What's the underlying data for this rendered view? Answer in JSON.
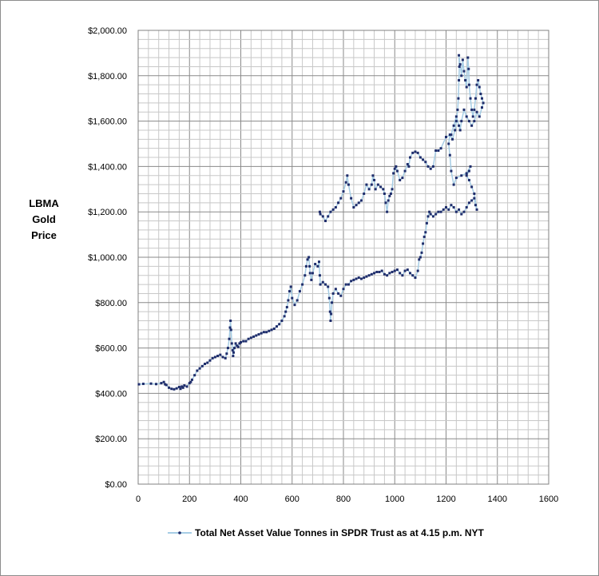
{
  "chart_data": {
    "type": "scatter",
    "title": "",
    "ylabel": "LBMA Gold Price",
    "ylabel_lines": [
      "LBMA",
      "Gold",
      "Price"
    ],
    "xlim": [
      0,
      1600
    ],
    "ylim": [
      0,
      2000
    ],
    "x_ticks": [
      0,
      200,
      400,
      600,
      800,
      1000,
      1200,
      1400,
      1600
    ],
    "x_tick_labels": [
      "0",
      "200",
      "400",
      "600",
      "800",
      "1000",
      "1200",
      "1400",
      "1600"
    ],
    "y_ticks": [
      0,
      200,
      400,
      600,
      800,
      1000,
      1200,
      1400,
      1600,
      1800,
      2000
    ],
    "y_tick_labels": [
      "$0.00",
      "$200.00",
      "$400.00",
      "$600.00",
      "$800.00",
      "$1,000.00",
      "$1,200.00",
      "$1,400.00",
      "$1,600.00",
      "$1,800.00",
      "$2,000.00"
    ],
    "grid": true,
    "legend_position": "bottom",
    "line_color": "#a6cde5",
    "marker_color": "#1f2d6b",
    "series": [
      {
        "name": "Total Net Asset Value Tonnes in SPDR Trust as at 4.15 p.m. NYT",
        "points": [
          [
            3,
            440
          ],
          [
            20,
            442
          ],
          [
            50,
            443
          ],
          [
            70,
            441
          ],
          [
            90,
            445
          ],
          [
            100,
            450
          ],
          [
            105,
            440
          ],
          [
            110,
            437
          ],
          [
            120,
            425
          ],
          [
            130,
            420
          ],
          [
            140,
            418
          ],
          [
            150,
            422
          ],
          [
            160,
            428
          ],
          [
            165,
            420
          ],
          [
            170,
            430
          ],
          [
            175,
            425
          ],
          [
            180,
            435
          ],
          [
            190,
            430
          ],
          [
            200,
            445
          ],
          [
            205,
            450
          ],
          [
            210,
            460
          ],
          [
            220,
            480
          ],
          [
            230,
            500
          ],
          [
            240,
            510
          ],
          [
            250,
            520
          ],
          [
            260,
            530
          ],
          [
            270,
            535
          ],
          [
            280,
            545
          ],
          [
            290,
            555
          ],
          [
            300,
            560
          ],
          [
            310,
            565
          ],
          [
            320,
            570
          ],
          [
            330,
            560
          ],
          [
            340,
            555
          ],
          [
            345,
            575
          ],
          [
            350,
            600
          ],
          [
            355,
            640
          ],
          [
            358,
            690
          ],
          [
            360,
            720
          ],
          [
            362,
            680
          ],
          [
            365,
            620
          ],
          [
            368,
            590
          ],
          [
            370,
            565
          ],
          [
            372,
            580
          ],
          [
            375,
            600
          ],
          [
            380,
            620
          ],
          [
            385,
            610
          ],
          [
            390,
            605
          ],
          [
            395,
            620
          ],
          [
            400,
            625
          ],
          [
            410,
            630
          ],
          [
            420,
            630
          ],
          [
            430,
            640
          ],
          [
            440,
            645
          ],
          [
            450,
            650
          ],
          [
            460,
            655
          ],
          [
            470,
            660
          ],
          [
            480,
            665
          ],
          [
            490,
            670
          ],
          [
            500,
            670
          ],
          [
            510,
            675
          ],
          [
            520,
            680
          ],
          [
            530,
            685
          ],
          [
            540,
            695
          ],
          [
            550,
            705
          ],
          [
            560,
            720
          ],
          [
            570,
            740
          ],
          [
            575,
            760
          ],
          [
            580,
            780
          ],
          [
            585,
            810
          ],
          [
            590,
            850
          ],
          [
            595,
            870
          ],
          [
            600,
            820
          ],
          [
            610,
            790
          ],
          [
            620,
            810
          ],
          [
            630,
            850
          ],
          [
            640,
            880
          ],
          [
            650,
            920
          ],
          [
            655,
            960
          ],
          [
            660,
            990
          ],
          [
            665,
            1000
          ],
          [
            668,
            960
          ],
          [
            670,
            930
          ],
          [
            675,
            900
          ],
          [
            680,
            930
          ],
          [
            690,
            970
          ],
          [
            700,
            960
          ],
          [
            705,
            980
          ],
          [
            708,
            920
          ],
          [
            710,
            880
          ],
          [
            720,
            890
          ],
          [
            730,
            880
          ],
          [
            740,
            870
          ],
          [
            745,
            820
          ],
          [
            748,
            760
          ],
          [
            750,
            720
          ],
          [
            752,
            750
          ],
          [
            755,
            800
          ],
          [
            760,
            840
          ],
          [
            770,
            860
          ],
          [
            780,
            840
          ],
          [
            790,
            830
          ],
          [
            800,
            860
          ],
          [
            810,
            880
          ],
          [
            820,
            880
          ],
          [
            830,
            895
          ],
          [
            840,
            900
          ],
          [
            850,
            905
          ],
          [
            860,
            910
          ],
          [
            870,
            905
          ],
          [
            880,
            910
          ],
          [
            890,
            915
          ],
          [
            900,
            920
          ],
          [
            910,
            925
          ],
          [
            920,
            930
          ],
          [
            930,
            935
          ],
          [
            940,
            935
          ],
          [
            950,
            940
          ],
          [
            960,
            925
          ],
          [
            970,
            920
          ],
          [
            980,
            930
          ],
          [
            990,
            935
          ],
          [
            1000,
            940
          ],
          [
            1010,
            945
          ],
          [
            1020,
            930
          ],
          [
            1030,
            920
          ],
          [
            1040,
            940
          ],
          [
            1050,
            945
          ],
          [
            1060,
            930
          ],
          [
            1070,
            920
          ],
          [
            1080,
            910
          ],
          [
            1090,
            940
          ],
          [
            1095,
            990
          ],
          [
            1100,
            1000
          ],
          [
            1105,
            1020
          ],
          [
            1110,
            1060
          ],
          [
            1115,
            1090
          ],
          [
            1120,
            1110
          ],
          [
            1125,
            1150
          ],
          [
            1130,
            1180
          ],
          [
            1135,
            1200
          ],
          [
            1140,
            1190
          ],
          [
            1150,
            1180
          ],
          [
            1160,
            1190
          ],
          [
            1170,
            1200
          ],
          [
            1180,
            1200
          ],
          [
            1190,
            1210
          ],
          [
            1200,
            1220
          ],
          [
            1210,
            1210
          ],
          [
            1220,
            1230
          ],
          [
            1230,
            1220
          ],
          [
            1240,
            1200
          ],
          [
            1250,
            1210
          ],
          [
            1260,
            1190
          ],
          [
            1270,
            1200
          ],
          [
            1280,
            1220
          ],
          [
            1290,
            1240
          ],
          [
            1300,
            1250
          ],
          [
            1310,
            1260
          ],
          [
            1315,
            1230
          ],
          [
            1320,
            1210
          ],
          [
            1310,
            1280
          ],
          [
            1300,
            1310
          ],
          [
            1290,
            1340
          ],
          [
            1280,
            1360
          ],
          [
            1290,
            1380
          ],
          [
            1295,
            1400
          ],
          [
            1280,
            1370
          ],
          [
            1260,
            1360
          ],
          [
            1240,
            1350
          ],
          [
            1230,
            1320
          ],
          [
            1220,
            1380
          ],
          [
            1215,
            1450
          ],
          [
            1210,
            1500
          ],
          [
            1215,
            1540
          ],
          [
            1225,
            1520
          ],
          [
            1235,
            1560
          ],
          [
            1240,
            1600
          ],
          [
            1245,
            1650
          ],
          [
            1248,
            1700
          ],
          [
            1250,
            1780
          ],
          [
            1252,
            1840
          ],
          [
            1250,
            1890
          ],
          [
            1255,
            1850
          ],
          [
            1260,
            1800
          ],
          [
            1265,
            1870
          ],
          [
            1270,
            1820
          ],
          [
            1275,
            1780
          ],
          [
            1280,
            1750
          ],
          [
            1285,
            1880
          ],
          [
            1288,
            1830
          ],
          [
            1290,
            1760
          ],
          [
            1295,
            1700
          ],
          [
            1300,
            1650
          ],
          [
            1305,
            1620
          ],
          [
            1310,
            1650
          ],
          [
            1315,
            1700
          ],
          [
            1320,
            1760
          ],
          [
            1325,
            1780
          ],
          [
            1330,
            1750
          ],
          [
            1335,
            1720
          ],
          [
            1340,
            1700
          ],
          [
            1345,
            1680
          ],
          [
            1340,
            1660
          ],
          [
            1330,
            1620
          ],
          [
            1320,
            1640
          ],
          [
            1310,
            1600
          ],
          [
            1300,
            1580
          ],
          [
            1290,
            1600
          ],
          [
            1280,
            1620
          ],
          [
            1270,
            1650
          ],
          [
            1260,
            1600
          ],
          [
            1255,
            1560
          ],
          [
            1250,
            1580
          ],
          [
            1240,
            1620
          ],
          [
            1230,
            1580
          ],
          [
            1220,
            1540
          ],
          [
            1200,
            1530
          ],
          [
            1180,
            1480
          ],
          [
            1170,
            1470
          ],
          [
            1160,
            1470
          ],
          [
            1150,
            1400
          ],
          [
            1140,
            1390
          ],
          [
            1130,
            1400
          ],
          [
            1120,
            1420
          ],
          [
            1110,
            1430
          ],
          [
            1100,
            1440
          ],
          [
            1090,
            1460
          ],
          [
            1080,
            1465
          ],
          [
            1070,
            1460
          ],
          [
            1060,
            1440
          ],
          [
            1055,
            1400
          ],
          [
            1050,
            1410
          ],
          [
            1040,
            1380
          ],
          [
            1030,
            1350
          ],
          [
            1020,
            1340
          ],
          [
            1010,
            1380
          ],
          [
            1005,
            1400
          ],
          [
            1000,
            1390
          ],
          [
            995,
            1370
          ],
          [
            990,
            1300
          ],
          [
            985,
            1280
          ],
          [
            980,
            1270
          ],
          [
            975,
            1250
          ],
          [
            970,
            1200
          ],
          [
            965,
            1240
          ],
          [
            960,
            1280
          ],
          [
            955,
            1300
          ],
          [
            945,
            1310
          ],
          [
            935,
            1320
          ],
          [
            925,
            1300
          ],
          [
            920,
            1340
          ],
          [
            915,
            1360
          ],
          [
            910,
            1320
          ],
          [
            900,
            1300
          ],
          [
            890,
            1320
          ],
          [
            880,
            1280
          ],
          [
            870,
            1250
          ],
          [
            860,
            1240
          ],
          [
            850,
            1230
          ],
          [
            840,
            1220
          ],
          [
            830,
            1260
          ],
          [
            820,
            1320
          ],
          [
            815,
            1360
          ],
          [
            810,
            1330
          ],
          [
            800,
            1290
          ],
          [
            790,
            1260
          ],
          [
            780,
            1240
          ],
          [
            770,
            1220
          ],
          [
            760,
            1210
          ],
          [
            750,
            1200
          ],
          [
            740,
            1180
          ],
          [
            730,
            1160
          ],
          [
            720,
            1180
          ],
          [
            710,
            1190
          ],
          [
            708,
            1200
          ]
        ]
      }
    ]
  }
}
